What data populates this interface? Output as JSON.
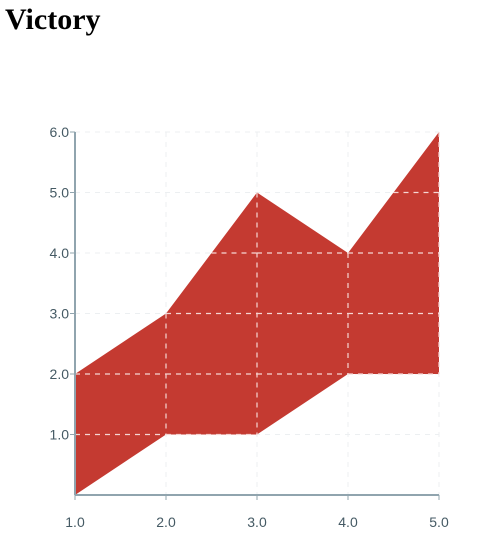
{
  "title": "Victory",
  "chart_data": {
    "type": "area",
    "x": [
      1,
      2,
      3,
      4,
      5
    ],
    "y0": [
      0,
      1,
      1,
      2,
      2
    ],
    "y": [
      2,
      3,
      5,
      4,
      6
    ],
    "xlim": [
      1,
      5
    ],
    "ylim": [
      0,
      6
    ],
    "x_ticks": [
      "1.0",
      "2.0",
      "3.0",
      "4.0",
      "5.0"
    ],
    "y_ticks": [
      "1.0",
      "2.0",
      "3.0",
      "4.0",
      "5.0",
      "6.0"
    ],
    "x_tick_values": [
      1,
      2,
      3,
      4,
      5
    ],
    "y_tick_values": [
      1,
      2,
      3,
      4,
      5,
      6
    ],
    "grid": true,
    "fill_color": "#c43a31",
    "axis_color": "#90a4ae",
    "grid_color": "#eceff1"
  }
}
